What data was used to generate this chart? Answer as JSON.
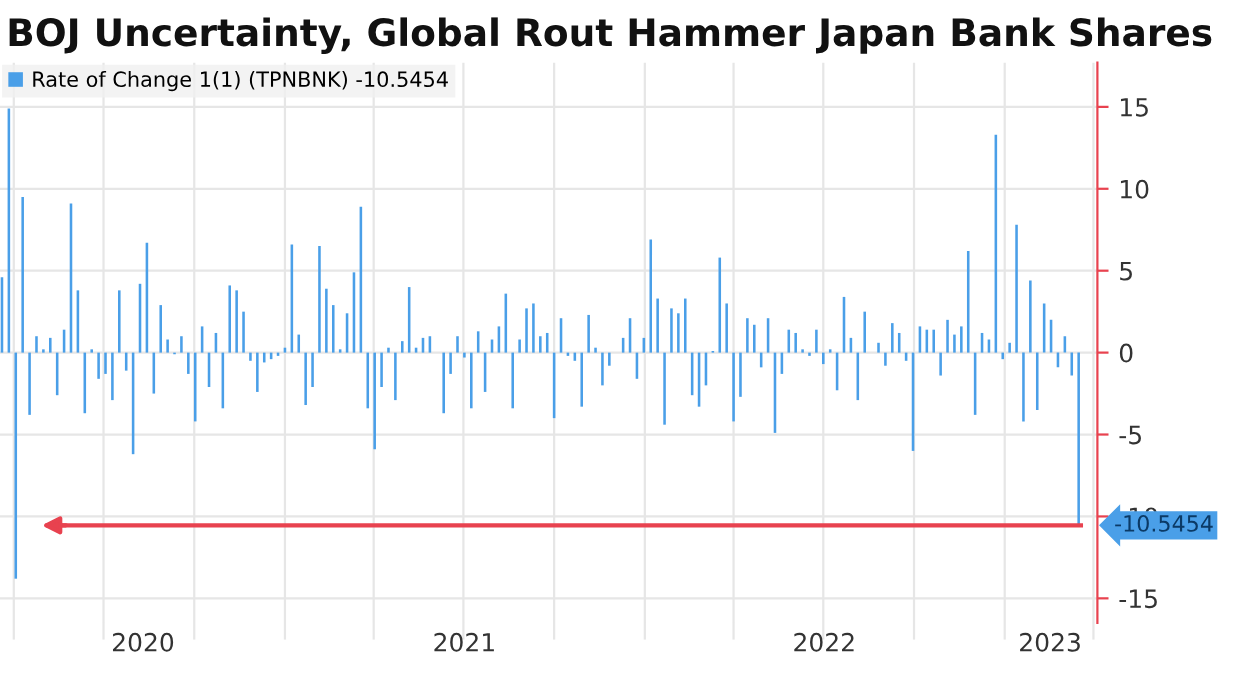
{
  "chart_data": {
    "type": "bar",
    "title": "BOJ Uncertainty, Global Rout Hammer Japan Bank Shares",
    "x": [
      "2020-03-20",
      "2020-03-27",
      "2020-04-03",
      "2020-04-10",
      "2020-04-17",
      "2020-04-24",
      "2020-05-01",
      "2020-05-08",
      "2020-05-15",
      "2020-05-22",
      "2020-05-29",
      "2020-06-05",
      "2020-06-12",
      "2020-06-19",
      "2020-06-26",
      "2020-07-03",
      "2020-07-10",
      "2020-07-17",
      "2020-07-24",
      "2020-07-31",
      "2020-08-07",
      "2020-08-14",
      "2020-08-21",
      "2020-08-28",
      "2020-09-04",
      "2020-09-11",
      "2020-09-18",
      "2020-09-25",
      "2020-10-02",
      "2020-10-09",
      "2020-10-16",
      "2020-10-23",
      "2020-10-30",
      "2020-11-06",
      "2020-11-13",
      "2020-11-20",
      "2020-11-27",
      "2020-12-04",
      "2020-12-11",
      "2020-12-18",
      "2020-12-25",
      "2021-01-01",
      "2021-01-08",
      "2021-01-15",
      "2021-01-22",
      "2021-01-29",
      "2021-02-05",
      "2021-02-12",
      "2021-02-19",
      "2021-02-26",
      "2021-03-05",
      "2021-03-12",
      "2021-03-19",
      "2021-03-26",
      "2021-04-02",
      "2021-04-09",
      "2021-04-16",
      "2021-04-23",
      "2021-04-30",
      "2021-05-07",
      "2021-05-14",
      "2021-05-21",
      "2021-05-28",
      "2021-06-04",
      "2021-06-11",
      "2021-06-18",
      "2021-06-25",
      "2021-07-02",
      "2021-07-09",
      "2021-07-16",
      "2021-07-23",
      "2021-07-30",
      "2021-08-06",
      "2021-08-13",
      "2021-08-20",
      "2021-08-27",
      "2021-09-03",
      "2021-09-10",
      "2021-09-17",
      "2021-09-24",
      "2021-10-01",
      "2021-10-08",
      "2021-10-15",
      "2021-10-22",
      "2021-10-29",
      "2021-11-05",
      "2021-11-12",
      "2021-11-19",
      "2021-11-26",
      "2021-12-03",
      "2021-12-10",
      "2021-12-17",
      "2021-12-24",
      "2021-12-31",
      "2022-01-07",
      "2022-01-14",
      "2022-01-21",
      "2022-01-28",
      "2022-02-04",
      "2022-02-11",
      "2022-02-18",
      "2022-02-25",
      "2022-03-04",
      "2022-03-11",
      "2022-03-18",
      "2022-03-25",
      "2022-04-01",
      "2022-04-08",
      "2022-04-15",
      "2022-04-22",
      "2022-04-29",
      "2022-05-06",
      "2022-05-13",
      "2022-05-20",
      "2022-05-27",
      "2022-06-03",
      "2022-06-10",
      "2022-06-17",
      "2022-06-24",
      "2022-07-01",
      "2022-07-08",
      "2022-07-15",
      "2022-07-22",
      "2022-07-29",
      "2022-08-05",
      "2022-08-12",
      "2022-08-19",
      "2022-08-26",
      "2022-09-02",
      "2022-09-09",
      "2022-09-16",
      "2022-09-23",
      "2022-09-30",
      "2022-10-07",
      "2022-10-14",
      "2022-10-21",
      "2022-10-28",
      "2022-11-04",
      "2022-11-11",
      "2022-11-18",
      "2022-11-25",
      "2022-12-02",
      "2022-12-09",
      "2022-12-16",
      "2022-12-23",
      "2022-12-30",
      "2023-01-06",
      "2023-01-13",
      "2023-01-20",
      "2023-01-27",
      "2023-02-03",
      "2023-02-10",
      "2023-02-17",
      "2023-02-24",
      "2023-03-03",
      "2023-03-10",
      "2023-03-17"
    ],
    "series": [
      {
        "name": "Rate of Change 1(1) (TPNBNK) -10.5454",
        "color": "#4a9fe8",
        "values": [
          4.6,
          14.9,
          -13.8,
          9.5,
          -3.8,
          1.0,
          0.2,
          0.9,
          -2.6,
          1.4,
          9.1,
          3.8,
          -3.7,
          0.2,
          -1.6,
          -1.3,
          -2.9,
          3.8,
          -1.1,
          -6.2,
          4.2,
          6.7,
          -2.5,
          2.9,
          0.8,
          -0.1,
          1.0,
          -1.3,
          -4.2,
          1.6,
          -2.1,
          1.2,
          -3.4,
          4.1,
          3.8,
          2.5,
          -0.5,
          -2.4,
          -0.6,
          -0.4,
          -0.2,
          0.3,
          6.6,
          1.1,
          -3.2,
          -2.1,
          6.5,
          3.9,
          2.9,
          0.2,
          2.4,
          4.9,
          8.9,
          -3.4,
          -5.9,
          -2.1,
          0.3,
          -2.9,
          0.7,
          4.0,
          0.3,
          0.9,
          1.0,
          0,
          -3.7,
          -1.3,
          1.0,
          -0.3,
          -3.4,
          1.3,
          -2.4,
          0.8,
          1.6,
          3.6,
          -3.4,
          0.8,
          2.7,
          3.0,
          1.0,
          1.2,
          -4.0,
          2.1,
          -0.2,
          -0.5,
          -3.3,
          2.3,
          0.3,
          -2.0,
          -0.8,
          0,
          0.9,
          2.1,
          -1.6,
          0.9,
          6.9,
          3.3,
          -4.4,
          2.7,
          2.4,
          3.3,
          -2.6,
          -3.3,
          -2.0,
          0.1,
          5.8,
          3.0,
          -4.2,
          -2.7,
          2.1,
          1.7,
          -0.9,
          2.1,
          -4.9,
          -1.3,
          1.4,
          1.2,
          0.2,
          -0.2,
          1.4,
          -0.7,
          0.2,
          -2.3,
          3.4,
          0.9,
          -2.9,
          2.5,
          0,
          0.6,
          -0.8,
          1.8,
          1.2,
          -0.5,
          -6.0,
          1.6,
          1.4,
          1.4,
          -1.4,
          2.0,
          1.1,
          1.6,
          6.2,
          -3.8,
          1.2,
          0.8,
          13.3,
          -0.4,
          0.6,
          7.8,
          -4.2,
          4.4,
          -3.5,
          3.0,
          2.0,
          -0.9,
          1.0,
          -1.4,
          -10.5454
        ]
      }
    ],
    "xlim": [
      "2020-03-18",
      "2023-04-05"
    ],
    "xticks": [
      {
        "value": "2020-04-01",
        "label": null
      },
      {
        "value": "2020-07-01",
        "label": null
      },
      {
        "value": "2020-10-01",
        "label": null
      },
      {
        "value": "2021-01-01",
        "label": null
      },
      {
        "value": "2021-04-01",
        "label": null
      },
      {
        "value": "2021-07-01",
        "label": null
      },
      {
        "value": "2021-10-01",
        "label": null
      },
      {
        "value": "2022-01-01",
        "label": null
      },
      {
        "value": "2022-04-01",
        "label": null
      },
      {
        "value": "2022-07-01",
        "label": null
      },
      {
        "value": "2022-10-01",
        "label": null
      },
      {
        "value": "2023-01-01",
        "label": null
      },
      {
        "value": "2023-04-01",
        "label": null
      },
      {
        "value": "2020-08-10",
        "label": "2020"
      },
      {
        "value": "2021-07-02",
        "label": "2021"
      },
      {
        "value": "2022-07-02",
        "label": "2022"
      },
      {
        "value": "2023-02-16",
        "label": "2023"
      }
    ],
    "ylim": [
      -16.5,
      17.7
    ],
    "yticks": [
      -15,
      -10,
      -5,
      0,
      5,
      10,
      15
    ],
    "annotations": [
      "-10.5454"
    ],
    "ref_lines": [
      {
        "axis": "y",
        "value": -10.5454,
        "color": "#e8424f"
      }
    ],
    "grid": true,
    "legend": "top left"
  }
}
